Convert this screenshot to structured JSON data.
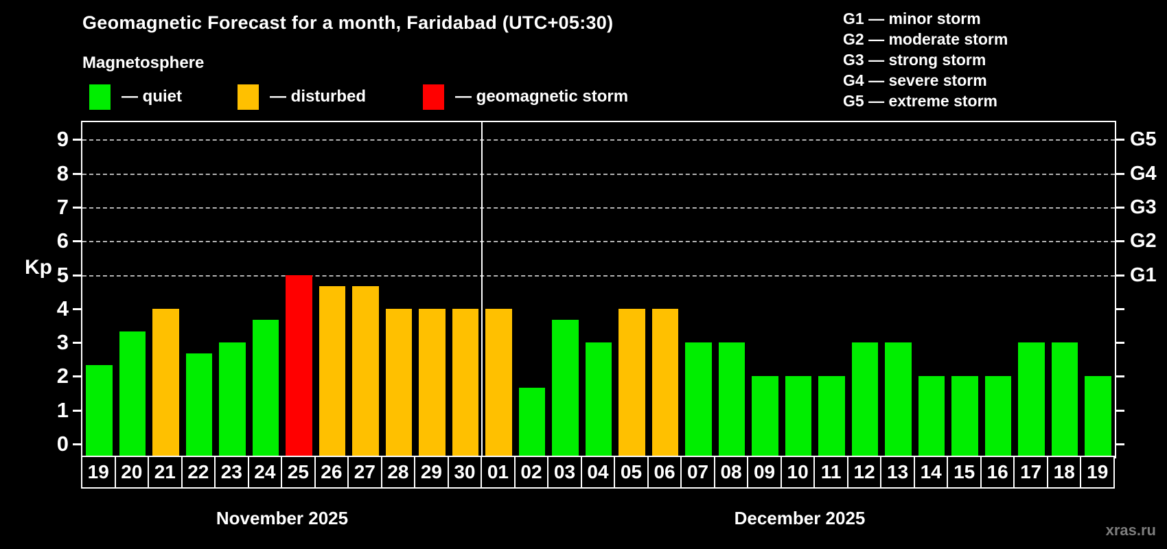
{
  "title": "Geomagnetic Forecast for a month, Faridabad (UTC+05:30)",
  "subtitle": "Magnetosphere",
  "legend": {
    "items": [
      {
        "key": "quiet",
        "label": "— quiet"
      },
      {
        "key": "disturbed",
        "label": "— disturbed"
      },
      {
        "key": "storm",
        "label": "— geomagnetic storm"
      }
    ]
  },
  "g_legend": [
    "G1 — minor storm",
    "G2 — moderate storm",
    "G3 — strong storm",
    "G4 — severe storm",
    "G5 — extreme storm"
  ],
  "y_axis": {
    "label": "Kp",
    "ticks": [
      0,
      1,
      2,
      3,
      4,
      5,
      6,
      7,
      8,
      9
    ]
  },
  "right_axis": {
    "labels": [
      {
        "label": "G5",
        "kp": 9
      },
      {
        "label": "G4",
        "kp": 8
      },
      {
        "label": "G3",
        "kp": 7
      },
      {
        "label": "G2",
        "kp": 6
      },
      {
        "label": "G1",
        "kp": 5
      }
    ]
  },
  "watermark": "xras.ru",
  "chart_data": {
    "type": "bar",
    "title": "Geomagnetic Forecast for a month, Faridabad (UTC+05:30)",
    "ylabel": "Kp",
    "ylim": [
      0,
      9
    ],
    "grid": "dashed horizontal at Kp 5-9 (G1-G5)",
    "status_colors": {
      "quiet": "#00ee00",
      "disturbed": "#ffc000",
      "storm": "#ff0000"
    },
    "groups": [
      {
        "month": "November 2025",
        "bars": [
          {
            "day": "19",
            "kp": 2.33,
            "status": "quiet"
          },
          {
            "day": "20",
            "kp": 3.33,
            "status": "quiet"
          },
          {
            "day": "21",
            "kp": 4.0,
            "status": "disturbed"
          },
          {
            "day": "22",
            "kp": 2.67,
            "status": "quiet"
          },
          {
            "day": "23",
            "kp": 3.0,
            "status": "quiet"
          },
          {
            "day": "24",
            "kp": 3.67,
            "status": "quiet"
          },
          {
            "day": "25",
            "kp": 5.0,
            "status": "storm"
          },
          {
            "day": "26",
            "kp": 4.67,
            "status": "disturbed"
          },
          {
            "day": "27",
            "kp": 4.67,
            "status": "disturbed"
          },
          {
            "day": "28",
            "kp": 4.0,
            "status": "disturbed"
          },
          {
            "day": "29",
            "kp": 4.0,
            "status": "disturbed"
          },
          {
            "day": "30",
            "kp": 4.0,
            "status": "disturbed"
          }
        ]
      },
      {
        "month": "December 2025",
        "bars": [
          {
            "day": "01",
            "kp": 4.0,
            "status": "disturbed"
          },
          {
            "day": "02",
            "kp": 1.67,
            "status": "quiet"
          },
          {
            "day": "03",
            "kp": 3.67,
            "status": "quiet"
          },
          {
            "day": "04",
            "kp": 3.0,
            "status": "quiet"
          },
          {
            "day": "05",
            "kp": 4.0,
            "status": "disturbed"
          },
          {
            "day": "06",
            "kp": 4.0,
            "status": "disturbed"
          },
          {
            "day": "07",
            "kp": 3.0,
            "status": "quiet"
          },
          {
            "day": "08",
            "kp": 3.0,
            "status": "quiet"
          },
          {
            "day": "09",
            "kp": 2.0,
            "status": "quiet"
          },
          {
            "day": "10",
            "kp": 2.0,
            "status": "quiet"
          },
          {
            "day": "11",
            "kp": 2.0,
            "status": "quiet"
          },
          {
            "day": "12",
            "kp": 3.0,
            "status": "quiet"
          },
          {
            "day": "13",
            "kp": 3.0,
            "status": "quiet"
          },
          {
            "day": "14",
            "kp": 2.0,
            "status": "quiet"
          },
          {
            "day": "15",
            "kp": 2.0,
            "status": "quiet"
          },
          {
            "day": "16",
            "kp": 2.0,
            "status": "quiet"
          },
          {
            "day": "17",
            "kp": 3.0,
            "status": "quiet"
          },
          {
            "day": "18",
            "kp": 3.0,
            "status": "quiet"
          },
          {
            "day": "19",
            "kp": 2.0,
            "status": "quiet"
          }
        ]
      }
    ]
  }
}
